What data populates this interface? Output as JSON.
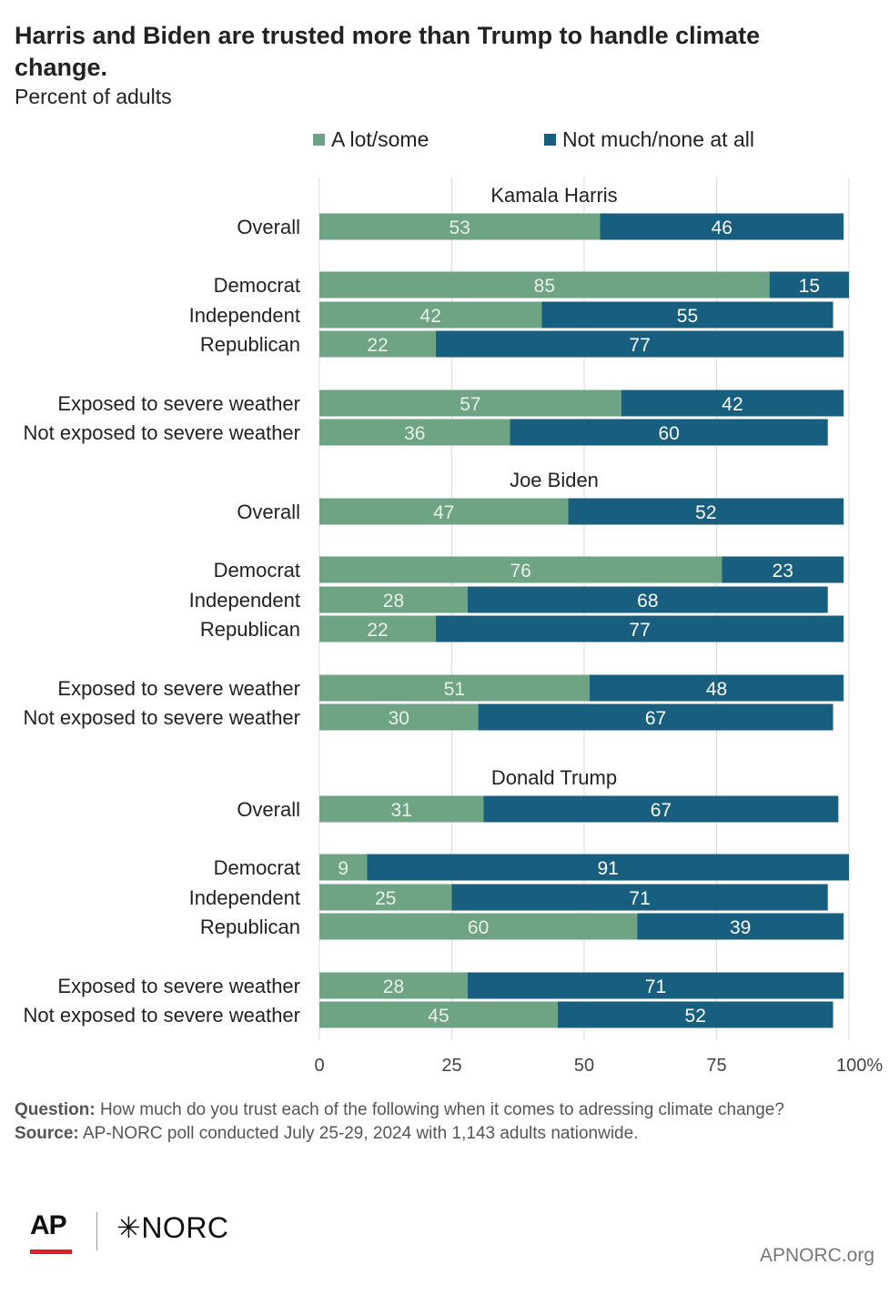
{
  "title": "Harris and Biden are trusted more than Trump to handle climate change.",
  "subtitle": "Percent of adults",
  "colors": {
    "lot_some": "#6ea383",
    "not_much": "#175e7f",
    "grid": "#d9d9d9"
  },
  "footer": {
    "question_label": "Question:",
    "question_text": "How much do you trust each of the following when it comes to adressing climate change?",
    "source_label": "Source:",
    "source_text": "AP-NORC poll conducted July 25-29, 2024 with 1,143 adults nationwide."
  },
  "logos": {
    "ap": "AP",
    "norc": "NORC",
    "norc_mark": "✳"
  },
  "site": "APNORC.org",
  "chart_data": {
    "type": "bar",
    "orientation": "horizontal",
    "stacked": true,
    "legend": [
      "A lot/some",
      "Not much/none at all"
    ],
    "legend_position": "top",
    "xlim": [
      0,
      100
    ],
    "x_ticks": [
      "0",
      "25",
      "50",
      "75",
      "100%"
    ],
    "x_tick_values": [
      0,
      25,
      50,
      75,
      100
    ],
    "grid": true,
    "groups": [
      {
        "name": "Kamala Harris",
        "rows": [
          {
            "label": "Overall",
            "values": [
              53,
              46
            ]
          },
          {
            "label": "Democrat",
            "values": [
              85,
              15
            ]
          },
          {
            "label": "Independent",
            "values": [
              42,
              55
            ]
          },
          {
            "label": "Republican",
            "values": [
              22,
              77
            ]
          },
          {
            "label": "Exposed to severe weather",
            "values": [
              57,
              42
            ]
          },
          {
            "label": "Not exposed to severe weather",
            "values": [
              36,
              60
            ]
          }
        ]
      },
      {
        "name": "Joe Biden",
        "rows": [
          {
            "label": "Overall",
            "values": [
              47,
              52
            ]
          },
          {
            "label": "Democrat",
            "values": [
              76,
              23
            ]
          },
          {
            "label": "Independent",
            "values": [
              28,
              68
            ]
          },
          {
            "label": "Republican",
            "values": [
              22,
              77
            ]
          },
          {
            "label": "Exposed to severe weather",
            "values": [
              51,
              48
            ]
          },
          {
            "label": "Not exposed to severe weather",
            "values": [
              30,
              67
            ]
          }
        ]
      },
      {
        "name": "Donald Trump",
        "rows": [
          {
            "label": "Overall",
            "values": [
              31,
              67
            ]
          },
          {
            "label": "Democrat",
            "values": [
              9,
              91
            ]
          },
          {
            "label": "Independent",
            "values": [
              25,
              71
            ]
          },
          {
            "label": "Republican",
            "values": [
              60,
              39
            ]
          },
          {
            "label": "Exposed to severe weather",
            "values": [
              28,
              71
            ]
          },
          {
            "label": "Not exposed to severe weather",
            "values": [
              45,
              52
            ]
          }
        ]
      }
    ]
  }
}
